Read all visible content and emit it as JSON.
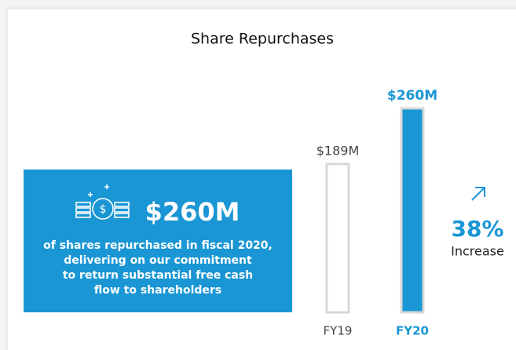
{
  "chart_data": {
    "type": "bar",
    "title": "Share Repurchases",
    "categories": [
      "FY19",
      "FY20"
    ],
    "values": [
      189,
      260
    ],
    "value_labels": [
      "$189M",
      "$260M"
    ],
    "colors": [
      "#ffffff",
      "#1a96d4"
    ],
    "callout": {
      "headline": "$260M",
      "lines": [
        "of shares repurchased in fiscal 2020,",
        "delivering on our commitment",
        "to return substantial free cash",
        "flow to shareholders"
      ]
    },
    "change": {
      "value_label": "38%",
      "label": "Increase"
    }
  }
}
